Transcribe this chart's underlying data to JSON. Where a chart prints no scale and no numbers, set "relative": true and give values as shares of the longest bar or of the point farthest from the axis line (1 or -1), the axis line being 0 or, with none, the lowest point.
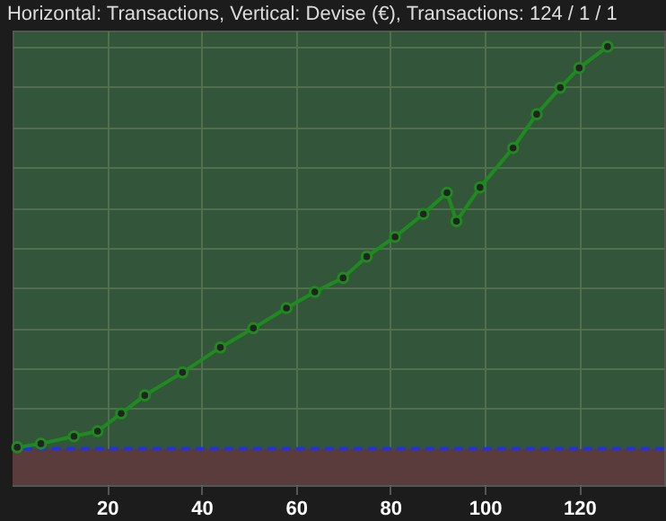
{
  "chart_data": {
    "type": "line",
    "title": "Horizontal: Transactions, Vertical: Devise (€), Transactions: 124 / 1 / 1",
    "relative": true,
    "x": [
      1,
      6,
      13,
      18,
      23,
      28,
      36,
      44,
      51,
      58,
      64,
      70,
      75,
      81,
      87,
      92,
      94,
      99,
      106,
      111,
      116,
      120,
      126
    ],
    "series": [
      {
        "color": "#1f8a1f",
        "values": [
          0.004,
          0.013,
          0.031,
          0.044,
          0.088,
          0.133,
          0.19,
          0.252,
          0.3,
          0.35,
          0.39,
          0.425,
          0.478,
          0.527,
          0.584,
          0.637,
          0.566,
          0.65,
          0.748,
          0.832,
          0.898,
          0.947,
          1.0
        ]
      }
    ],
    "xlim": [
      0,
      138
    ],
    "xticks": [
      20,
      40,
      60,
      80,
      100,
      120
    ],
    "bands": [
      {
        "axis": "y",
        "from": -0.09,
        "to": 0,
        "color": "#5a3c3c"
      }
    ],
    "ref_lines": [
      {
        "axis": "y",
        "value": 0,
        "color": "#2233dd",
        "line_style": "dashed"
      }
    ],
    "marker": "circle",
    "line_style": "solid",
    "grid": true
  }
}
